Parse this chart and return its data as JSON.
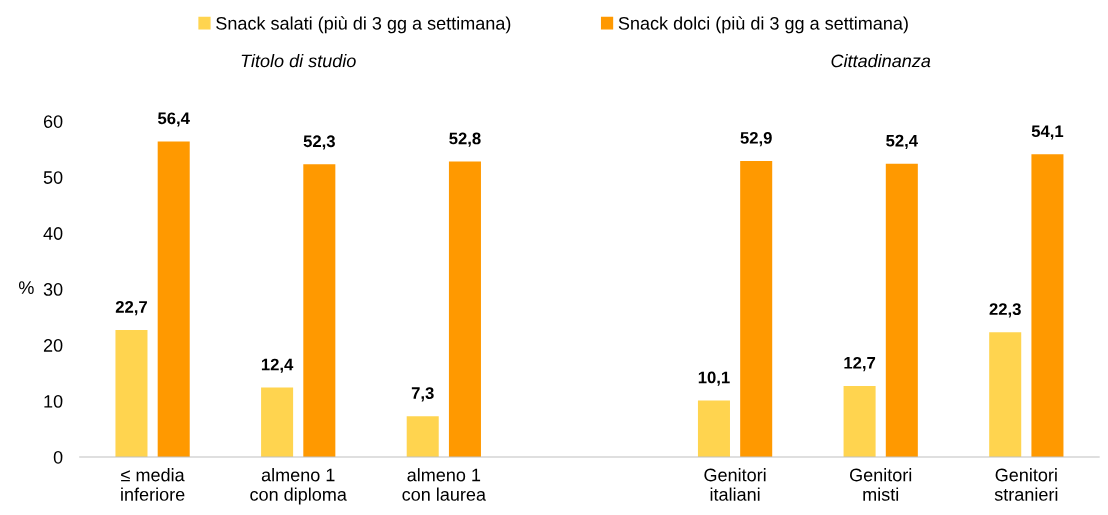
{
  "chart_data": {
    "type": "bar",
    "categories": [
      "≤ media\ninferiore",
      "almeno 1\ncon diploma",
      "almeno 1\ncon laurea",
      null,
      "Genitori\nitaliani",
      "Genitori\nmisti",
      "Genitori\nstranieri"
    ],
    "series": [
      {
        "name": "Snack salati (più di 3 gg a settimana)",
        "color": "#ffd44f",
        "values": [
          22.7,
          12.4,
          7.3,
          null,
          10.1,
          12.7,
          22.3
        ],
        "value_labels": [
          "22,7",
          "12,4",
          "7,3",
          null,
          "10,1",
          "12,7",
          "22,3"
        ]
      },
      {
        "name": "Snack dolci (più di 3 gg a settimana)",
        "color": "#ff9900",
        "values": [
          56.4,
          52.3,
          52.8,
          null,
          52.9,
          52.4,
          54.1
        ],
        "value_labels": [
          "56,4",
          "52,3",
          "52,8",
          null,
          "52,9",
          "52,4",
          "54,1"
        ]
      }
    ],
    "ylabel": "%",
    "ylim": [
      0,
      60
    ],
    "yticks": [
      0,
      10,
      20,
      30,
      40,
      50,
      60
    ],
    "annotations": [
      "Titolo di studio",
      "Cittadinanza"
    ],
    "legend": "top",
    "grid": false
  }
}
